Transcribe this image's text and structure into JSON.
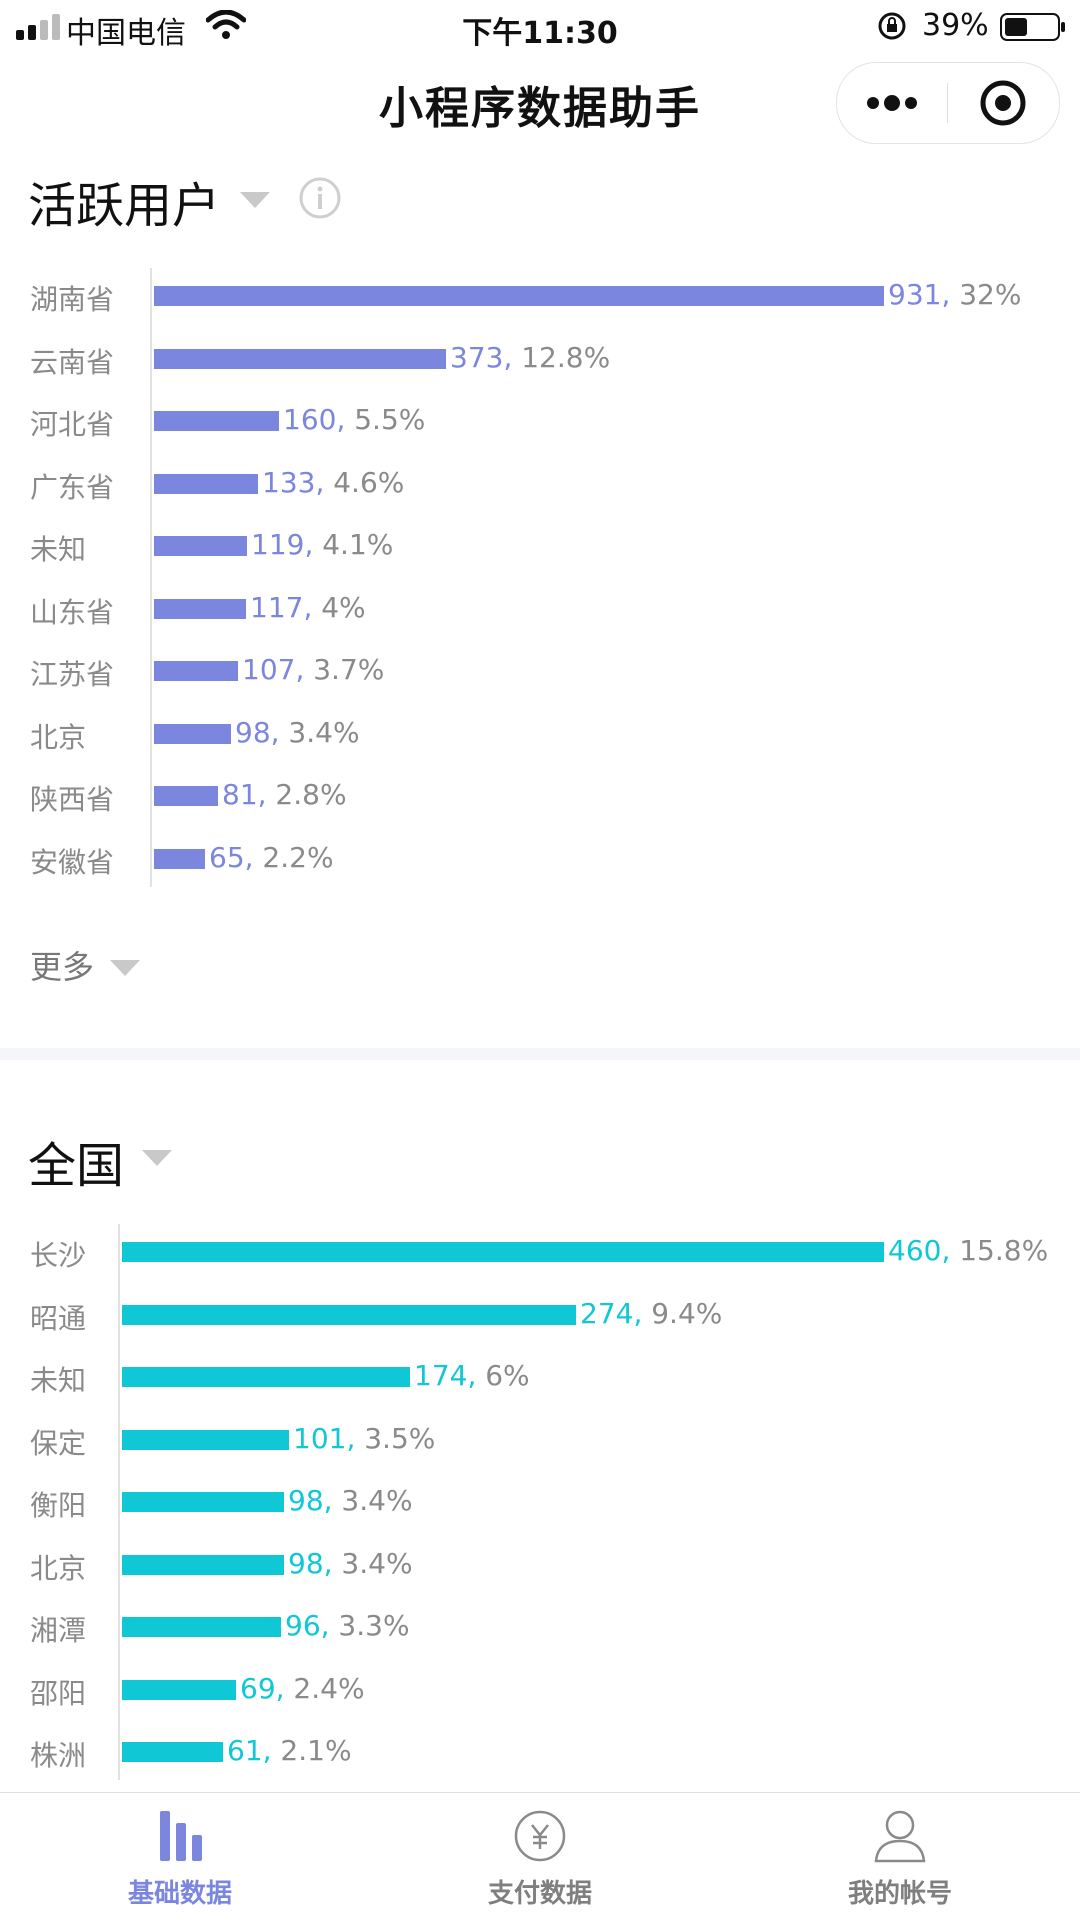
{
  "status_bar": {
    "carrier": "中国电信",
    "time": "下午11:30",
    "battery": "39%"
  },
  "nav": {
    "title": "小程序数据助手"
  },
  "active_users": {
    "title": "活跃用户",
    "more": "更多",
    "color": "#7b86de",
    "chart_data": {
      "type": "bar",
      "categories": [
        "湖南省",
        "云南省",
        "河北省",
        "广东省",
        "未知",
        "山东省",
        "江苏省",
        "北京",
        "陕西省",
        "安徽省"
      ],
      "values": [
        931,
        373,
        160,
        133,
        119,
        117,
        107,
        98,
        81,
        65
      ],
      "value_labels": [
        "931,",
        "373,",
        "160,",
        "133,",
        "119,",
        "117,",
        "107,",
        "98,",
        "81,",
        "65,"
      ],
      "percent_labels": [
        "32%",
        "12.8%",
        "5.5%",
        "4.6%",
        "4.1%",
        "4%",
        "3.7%",
        "3.4%",
        "2.8%",
        "2.2%"
      ]
    }
  },
  "national": {
    "title": "全国",
    "color": "#10c7d6",
    "chart_data": {
      "type": "bar",
      "categories": [
        "长沙",
        "昭通",
        "未知",
        "保定",
        "衡阳",
        "北京",
        "湘潭",
        "邵阳",
        "株洲"
      ],
      "values": [
        460,
        274,
        174,
        101,
        98,
        98,
        96,
        69,
        61
      ],
      "value_labels": [
        "460,",
        "274,",
        "174,",
        "101,",
        "98,",
        "98,",
        "96,",
        "69,",
        "61,"
      ],
      "percent_labels": [
        "15.8%",
        "9.4%",
        "6%",
        "3.5%",
        "3.4%",
        "3.4%",
        "3.3%",
        "2.4%",
        "2.1%"
      ]
    }
  },
  "tabbar": {
    "active_color": "#7b86de",
    "items": [
      {
        "label": "基础数据",
        "icon": "bar-chart-icon",
        "active": true
      },
      {
        "label": "支付数据",
        "icon": "yuan-icon",
        "active": false
      },
      {
        "label": "我的帐号",
        "icon": "user-icon",
        "active": false
      }
    ]
  }
}
